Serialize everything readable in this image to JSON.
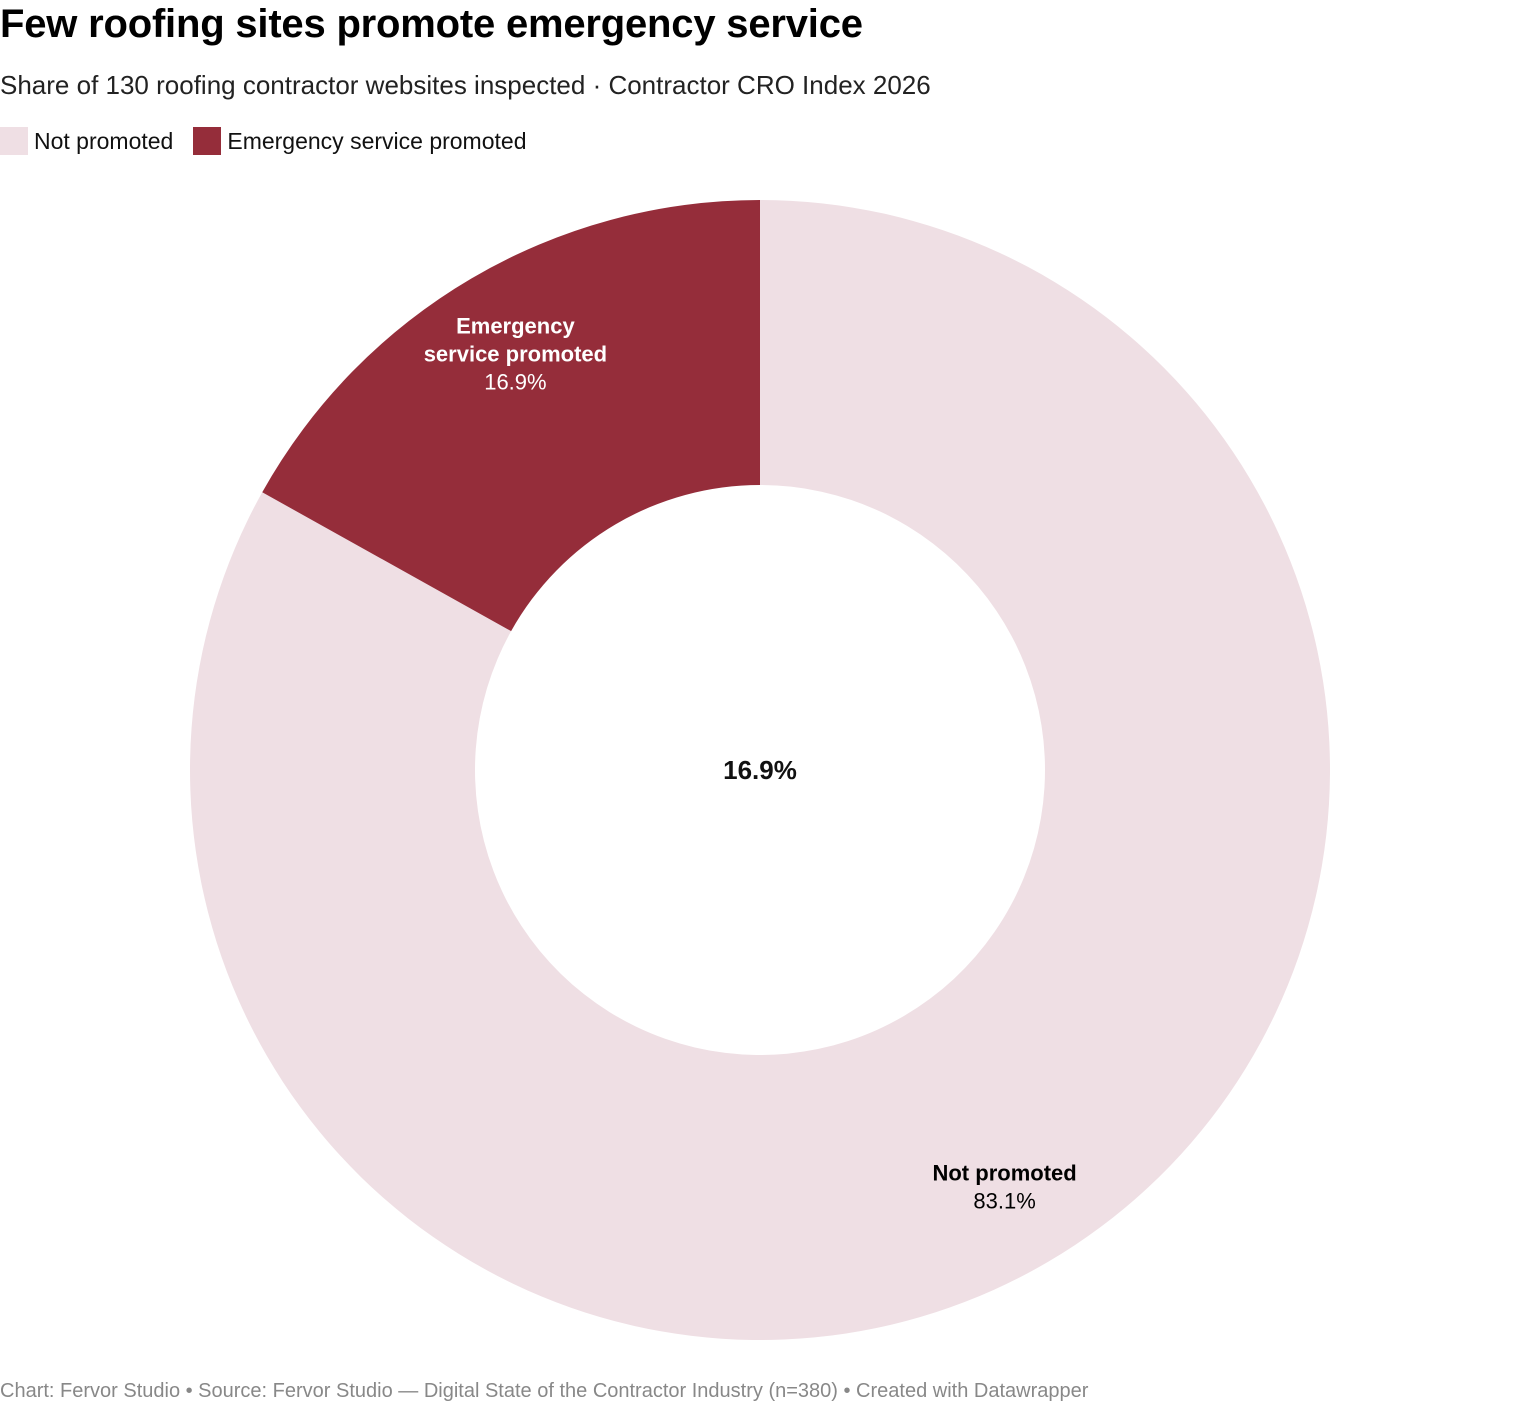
{
  "title": "Few roofing sites promote emergency service",
  "subtitle": "Share of 130 roofing contractor websites inspected · Contractor CRO Index 2026",
  "footer": "Chart: Fervor Studio • Source: Fervor Studio — Digital State of the Contractor Industry (n=380) • Created with Datawrapper",
  "legend": [
    {
      "label": "Not promoted",
      "color": "#efdfe4"
    },
    {
      "label": "Emergency service promoted",
      "color": "#952d3a"
    }
  ],
  "chart_data": {
    "type": "pie",
    "variant": "donut",
    "title": "Few roofing sites promote emergency service",
    "center_label": "16.9%",
    "slices": [
      {
        "label": "Not promoted",
        "label_lines": [
          "Not promoted"
        ],
        "value": 83.1,
        "value_label": "83.1%",
        "color": "#efdfe4",
        "text_color": "#000000"
      },
      {
        "label": "Emergency service promoted",
        "label_lines": [
          "Emergency",
          "service promoted"
        ],
        "value": 16.9,
        "value_label": "16.9%",
        "color": "#952d3a",
        "text_color": "#ffffff"
      }
    ],
    "legend_position": "top-left"
  }
}
